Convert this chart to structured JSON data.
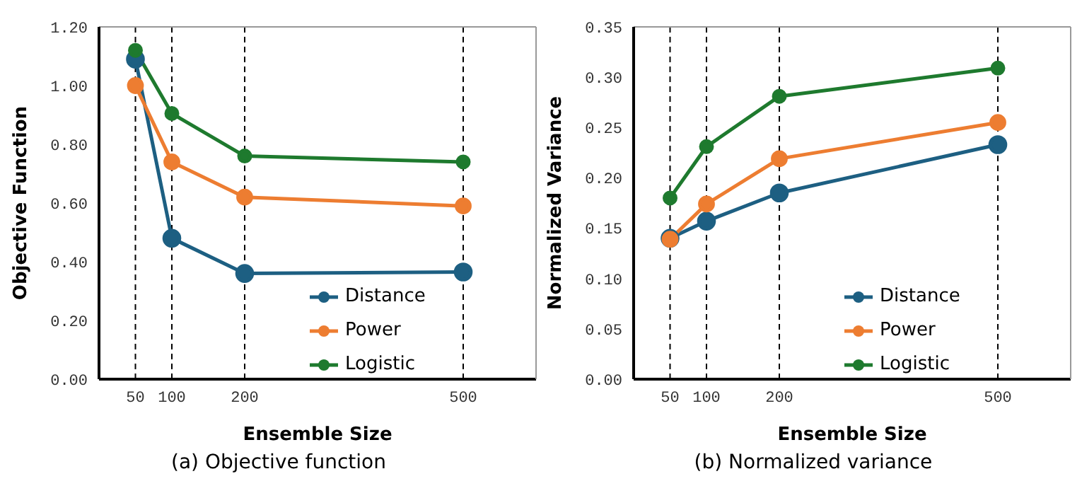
{
  "chart_data": [
    {
      "type": "line",
      "title": "(a) Objective function",
      "xlabel": "Ensemble Size",
      "ylabel": "Objective Function",
      "x": [
        50,
        100,
        200,
        500
      ],
      "xlim": [
        0,
        600
      ],
      "xticks": [
        50,
        100,
        200,
        500
      ],
      "ylim": [
        0,
        1.2
      ],
      "yticks": [
        {
          "value": 0,
          "label": "0.00"
        },
        {
          "value": 0.2,
          "label": "0.20"
        },
        {
          "value": 0.4,
          "label": "0.40"
        },
        {
          "value": 0.6,
          "label": "0.60"
        },
        {
          "value": 0.8,
          "label": "0.80"
        },
        {
          "value": 1,
          "label": "1.00"
        },
        {
          "value": 1.2,
          "label": "1.20"
        }
      ],
      "grid": false,
      "legend": "bottom right",
      "marker": "circle",
      "line_style": "solid",
      "ref_lines": [
        {
          "axis": "x",
          "value": 50,
          "color": "#000000",
          "line_style": "dashed"
        },
        {
          "axis": "x",
          "value": 100,
          "color": "#000000",
          "line_style": "dashed"
        },
        {
          "axis": "x",
          "value": 200,
          "color": "#000000",
          "line_style": "dashed"
        },
        {
          "axis": "x",
          "value": 500,
          "color": "#000000",
          "line_style": "dashed"
        }
      ],
      "series": [
        {
          "name": "Distance",
          "color": "#1d5f82",
          "values": [
            1.09,
            0.48,
            0.36,
            0.365
          ]
        },
        {
          "name": "Power",
          "color": "#ed7d31",
          "values": [
            1.0,
            0.74,
            0.62,
            0.59
          ]
        },
        {
          "name": "Logistic",
          "color": "#1e7a2e",
          "values": [
            1.12,
            0.905,
            0.76,
            0.74
          ]
        }
      ]
    },
    {
      "type": "line",
      "title": "(b) Normalized variance",
      "xlabel": "Ensemble Size",
      "ylabel": "Normalized Variance",
      "x": [
        50,
        100,
        200,
        500
      ],
      "xlim": [
        0,
        600
      ],
      "xticks": [
        50,
        100,
        200,
        500
      ],
      "ylim": [
        0,
        0.35
      ],
      "yticks": [
        {
          "value": 0,
          "label": "0.00"
        },
        {
          "value": 0.05,
          "label": "0.05"
        },
        {
          "value": 0.1,
          "label": "0.10"
        },
        {
          "value": 0.15,
          "label": "0.15"
        },
        {
          "value": 0.2,
          "label": "0.20"
        },
        {
          "value": 0.25,
          "label": "0.25"
        },
        {
          "value": 0.3,
          "label": "0.30"
        },
        {
          "value": 0.35,
          "label": "0.35"
        }
      ],
      "grid": false,
      "legend": "bottom right",
      "marker": "circle",
      "line_style": "solid",
      "ref_lines": [
        {
          "axis": "x",
          "value": 50,
          "color": "#000000",
          "line_style": "dashed"
        },
        {
          "axis": "x",
          "value": 100,
          "color": "#000000",
          "line_style": "dashed"
        },
        {
          "axis": "x",
          "value": 200,
          "color": "#000000",
          "line_style": "dashed"
        },
        {
          "axis": "x",
          "value": 500,
          "color": "#000000",
          "line_style": "dashed"
        }
      ],
      "series": [
        {
          "name": "Distance",
          "color": "#1d5f82",
          "values": [
            0.14,
            0.157,
            0.185,
            0.233
          ]
        },
        {
          "name": "Power",
          "color": "#ed7d31",
          "values": [
            0.139,
            0.174,
            0.219,
            0.255
          ]
        },
        {
          "name": "Logistic",
          "color": "#1e7a2e",
          "values": [
            0.18,
            0.231,
            0.281,
            0.309
          ]
        }
      ]
    }
  ]
}
